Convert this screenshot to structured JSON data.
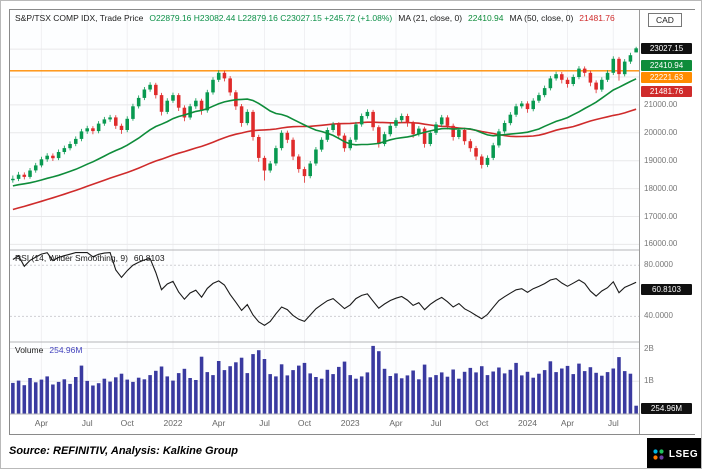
{
  "header": {
    "title": "S&P/TSX COMP IDX, Trade Price",
    "ohlc_text": "O22879.16  H23082.44  L22879.16  C23027.15  +245.72 (+1.08%)",
    "ma21_label": "MA (21, close, 0)",
    "ma21_value": "22410.94",
    "ma50_label": "MA (50, close, 0)",
    "ma50_value": "21481.76"
  },
  "rsi_panel": {
    "label": "RSI (14, Wilder Smoothing, 9)",
    "value": "60.8103"
  },
  "volume_panel": {
    "label": "Volume",
    "value": "254.96M"
  },
  "footer": {
    "source": "Source: REFINITIV, Analysis: Kalkine Group",
    "logo_text": "LSEG"
  },
  "axis": {
    "currency": "CAD",
    "price_labels": [
      {
        "text": "21000.00",
        "value": 21000
      },
      {
        "text": "20000.00",
        "value": 20000
      },
      {
        "text": "19000.00",
        "value": 19000
      },
      {
        "text": "18000.00",
        "value": 18000
      },
      {
        "text": "17000.00",
        "value": 17000
      },
      {
        "text": "16000.00",
        "value": 16000
      }
    ],
    "price_badges": [
      {
        "text": "23027.15",
        "value": 23027.15,
        "bg": "#101010",
        "fg": "#ffffff"
      },
      {
        "text": "22410.94",
        "value": 22410.94,
        "bg": "#0e8c3a",
        "fg": "#ffffff"
      },
      {
        "text": "22221.63",
        "value": 22221.63,
        "bg": "#ff8c00",
        "fg": "#ffffff"
      },
      {
        "text": "21481.76",
        "value": 21481.76,
        "bg": "#cf2b2b",
        "fg": "#ffffff"
      }
    ],
    "rsi_labels": [
      {
        "text": "80.0000",
        "value": 80
      },
      {
        "text": "40.0000",
        "value": 40
      }
    ],
    "rsi_badge": {
      "text": "60.8103",
      "value": 60.8103,
      "bg": "#101010",
      "fg": "#ffffff"
    },
    "volume_labels": [
      {
        "text": "2B",
        "value": 2000
      },
      {
        "text": "1B",
        "value": 1000
      }
    ],
    "volume_badge": {
      "text": "254.96M",
      "bg": "#101010",
      "fg": "#ffffff"
    }
  },
  "chart_data": [
    {
      "type": "candlestick",
      "title": "S&P/TSX COMP IDX, Trade Price",
      "currency": "CAD",
      "interval": "weekly (approx.)",
      "last_close": 23027.15,
      "ylim": [
        15800,
        24400
      ],
      "gridlines": [
        16000,
        17000,
        18000,
        19000,
        20000,
        21000,
        22000,
        23000
      ],
      "hline": {
        "value": 22221.63,
        "color": "#ff8c00"
      },
      "up_color": "#089950",
      "down_color": "#df2b2b",
      "ma": [
        {
          "period": 21,
          "color": "#0e8c3a",
          "last": 22410.94
        },
        {
          "period": 50,
          "color": "#cf2b2b",
          "last": 21481.76
        }
      ],
      "x_ticks": [
        {
          "label": "Apr",
          "i": 5
        },
        {
          "label": "Jul",
          "i": 13
        },
        {
          "label": "Oct",
          "i": 20
        },
        {
          "label": "2022",
          "i": 28
        },
        {
          "label": "Apr",
          "i": 36
        },
        {
          "label": "Jul",
          "i": 44
        },
        {
          "label": "Oct",
          "i": 51
        },
        {
          "label": "2023",
          "i": 59
        },
        {
          "label": "Apr",
          "i": 67
        },
        {
          "label": "Jul",
          "i": 74
        },
        {
          "label": "Oct",
          "i": 82
        },
        {
          "label": "2024",
          "i": 90
        },
        {
          "label": "Apr",
          "i": 97
        },
        {
          "label": "Jul",
          "i": 105
        }
      ],
      "pre_closes": [
        15600,
        15650,
        15720,
        15680,
        15800,
        15900,
        15980,
        16050,
        16150,
        16100,
        16250,
        16350,
        16450,
        16400,
        16550,
        16650,
        16750,
        16850,
        16800,
        16950,
        17050,
        17150,
        17100,
        17250,
        17350,
        17420,
        17380,
        17500,
        17600,
        17680,
        17650,
        17750,
        17850,
        17900,
        17870,
        17950,
        18020,
        18080,
        18050,
        18120,
        18180,
        18150,
        18220,
        18260,
        18230,
        18280,
        18300,
        18270,
        18290,
        18300
      ],
      "ohlc": [
        [
          18300,
          18470,
          18210,
          18350
        ],
        [
          18350,
          18600,
          18270,
          18500
        ],
        [
          18500,
          18580,
          18330,
          18420
        ],
        [
          18420,
          18740,
          18350,
          18650
        ],
        [
          18650,
          18920,
          18570,
          18830
        ],
        [
          18830,
          19140,
          18760,
          19050
        ],
        [
          19050,
          19270,
          18960,
          19180
        ],
        [
          19180,
          19260,
          18990,
          19090
        ],
        [
          19090,
          19400,
          19020,
          19310
        ],
        [
          19310,
          19540,
          19230,
          19450
        ],
        [
          19450,
          19690,
          19370,
          19600
        ],
        [
          19600,
          19870,
          19520,
          19780
        ],
        [
          19780,
          20140,
          19700,
          20050
        ],
        [
          20050,
          20250,
          19960,
          20160
        ],
        [
          20160,
          20240,
          19950,
          20060
        ],
        [
          20060,
          20420,
          19980,
          20330
        ],
        [
          20330,
          20570,
          20250,
          20480
        ],
        [
          20480,
          20640,
          20390,
          20550
        ],
        [
          20550,
          20630,
          20140,
          20250
        ],
        [
          20250,
          20330,
          19960,
          20100
        ],
        [
          20100,
          20590,
          20020,
          20500
        ],
        [
          20500,
          21040,
          20430,
          20950
        ],
        [
          20950,
          21340,
          20870,
          21250
        ],
        [
          21250,
          21640,
          21170,
          21550
        ],
        [
          21550,
          21810,
          21470,
          21720
        ],
        [
          21720,
          21790,
          21230,
          21350
        ],
        [
          21350,
          21430,
          20620,
          20750
        ],
        [
          20750,
          21240,
          20670,
          21150
        ],
        [
          21150,
          21440,
          21070,
          21350
        ],
        [
          21350,
          21420,
          20780,
          20900
        ],
        [
          20900,
          20980,
          20410,
          20550
        ],
        [
          20550,
          21040,
          20470,
          20950
        ],
        [
          20950,
          21240,
          20860,
          21150
        ],
        [
          21150,
          21220,
          20650,
          20800
        ],
        [
          20800,
          21540,
          20720,
          21450
        ],
        [
          21450,
          21990,
          21370,
          21900
        ],
        [
          21900,
          22240,
          21820,
          22150
        ],
        [
          22150,
          22230,
          21840,
          21950
        ],
        [
          21950,
          22030,
          21330,
          21450
        ],
        [
          21450,
          21530,
          20820,
          20950
        ],
        [
          20950,
          21030,
          20220,
          20350
        ],
        [
          20350,
          20840,
          20270,
          20750
        ],
        [
          20750,
          20820,
          19720,
          19850
        ],
        [
          19850,
          19930,
          18960,
          19100
        ],
        [
          19100,
          19180,
          18290,
          18650
        ],
        [
          18650,
          18990,
          18570,
          18900
        ],
        [
          18900,
          19540,
          18820,
          19450
        ],
        [
          19450,
          20090,
          19370,
          20000
        ],
        [
          20000,
          20080,
          19630,
          19750
        ],
        [
          19750,
          19830,
          19020,
          19150
        ],
        [
          19150,
          19230,
          18570,
          18700
        ],
        [
          18700,
          18780,
          18210,
          18450
        ],
        [
          18450,
          18990,
          18370,
          18900
        ],
        [
          18900,
          19490,
          18820,
          19400
        ],
        [
          19400,
          19840,
          19320,
          19750
        ],
        [
          19750,
          20190,
          19670,
          20100
        ],
        [
          20100,
          20390,
          20020,
          20300
        ],
        [
          20300,
          20380,
          19770,
          19900
        ],
        [
          19900,
          19980,
          19320,
          19450
        ],
        [
          19450,
          19840,
          19370,
          19750
        ],
        [
          19750,
          20390,
          19670,
          20300
        ],
        [
          20300,
          20690,
          20220,
          20600
        ],
        [
          20600,
          20840,
          20510,
          20750
        ],
        [
          20750,
          20820,
          20070,
          20200
        ],
        [
          20200,
          20270,
          19470,
          19600
        ],
        [
          19600,
          20040,
          19520,
          19950
        ],
        [
          19950,
          20340,
          19870,
          20250
        ],
        [
          20250,
          20540,
          20170,
          20450
        ],
        [
          20450,
          20690,
          20360,
          20600
        ],
        [
          20600,
          20680,
          20220,
          20350
        ],
        [
          20350,
          20430,
          19820,
          19950
        ],
        [
          19950,
          20240,
          19870,
          20150
        ],
        [
          20150,
          20220,
          19470,
          19600
        ],
        [
          19600,
          20090,
          19520,
          20000
        ],
        [
          20000,
          20390,
          19920,
          20300
        ],
        [
          20300,
          20640,
          20220,
          20550
        ],
        [
          20550,
          20630,
          20120,
          20250
        ],
        [
          20250,
          20330,
          19720,
          19850
        ],
        [
          19850,
          20190,
          19770,
          20100
        ],
        [
          20100,
          20180,
          19570,
          19700
        ],
        [
          19700,
          19780,
          19320,
          19450
        ],
        [
          19450,
          19530,
          19020,
          19150
        ],
        [
          19150,
          19230,
          18720,
          18850
        ],
        [
          18850,
          19190,
          18770,
          19100
        ],
        [
          19100,
          19640,
          19020,
          19550
        ],
        [
          19550,
          20140,
          19470,
          20050
        ],
        [
          20050,
          20440,
          19970,
          20350
        ],
        [
          20350,
          20740,
          20270,
          20650
        ],
        [
          20650,
          21040,
          20570,
          20950
        ],
        [
          20950,
          21140,
          20870,
          21050
        ],
        [
          21050,
          21130,
          20720,
          20850
        ],
        [
          20850,
          21240,
          20770,
          21150
        ],
        [
          21150,
          21440,
          21070,
          21350
        ],
        [
          21350,
          21690,
          21270,
          21600
        ],
        [
          21600,
          22040,
          21520,
          21950
        ],
        [
          21950,
          22190,
          21870,
          22100
        ],
        [
          22100,
          22180,
          21770,
          21900
        ],
        [
          21900,
          21980,
          21620,
          21750
        ],
        [
          21750,
          22090,
          21670,
          22000
        ],
        [
          22000,
          22390,
          21920,
          22300
        ],
        [
          22300,
          22380,
          22020,
          22150
        ],
        [
          22150,
          22230,
          21670,
          21800
        ],
        [
          21800,
          21880,
          21420,
          21550
        ],
        [
          21550,
          21990,
          21470,
          21900
        ],
        [
          21900,
          22240,
          21820,
          22150
        ],
        [
          22150,
          22740,
          22070,
          22650
        ],
        [
          22650,
          22720,
          21870,
          22100
        ],
        [
          22100,
          22640,
          22020,
          22550
        ],
        [
          22550,
          22870,
          22470,
          22781
        ],
        [
          22879.16,
          23082.44,
          22879.16,
          23027.15
        ]
      ]
    },
    {
      "type": "line",
      "name": "RSI (14, Wilder Smoothing, 9)",
      "derived_from": "Wilder RSI(14) computed over the candlestick closes",
      "last": 60.8103,
      "ylim": [
        20,
        92
      ],
      "ticks": [
        40,
        80
      ],
      "color": "#1a1a1a"
    },
    {
      "type": "bar",
      "name": "Volume",
      "unit": "millions",
      "last_label": "254.96M",
      "ylim": [
        0,
        2200
      ],
      "ticks": [
        {
          "value": 1000,
          "label": "1B"
        },
        {
          "value": 2000,
          "label": "2B"
        }
      ],
      "color": "#3a3aa0",
      "values": [
        950,
        1020,
        880,
        1100,
        970,
        1050,
        1150,
        900,
        980,
        1060,
        920,
        1130,
        1480,
        1010,
        870,
        940,
        1080,
        990,
        1120,
        1230,
        1050,
        980,
        1110,
        1060,
        1190,
        1320,
        1450,
        1150,
        1020,
        1250,
        1380,
        1100,
        1040,
        1750,
        1280,
        1190,
        1620,
        1340,
        1460,
        1580,
        1720,
        1250,
        1830,
        1950,
        1680,
        1220,
        1150,
        1520,
        1180,
        1340,
        1480,
        1560,
        1240,
        1130,
        1080,
        1350,
        1220,
        1440,
        1600,
        1190,
        1080,
        1150,
        1270,
        2080,
        1920,
        1380,
        1160,
        1240,
        1090,
        1180,
        1330,
        1060,
        1510,
        1120,
        1190,
        1270,
        1140,
        1360,
        1080,
        1290,
        1410,
        1270,
        1460,
        1190,
        1300,
        1420,
        1240,
        1350,
        1560,
        1180,
        1290,
        1110,
        1230,
        1340,
        1610,
        1280,
        1390,
        1470,
        1220,
        1540,
        1310,
        1430,
        1260,
        1170,
        1280,
        1390,
        1740,
        1310,
        1230,
        254.96
      ]
    }
  ]
}
